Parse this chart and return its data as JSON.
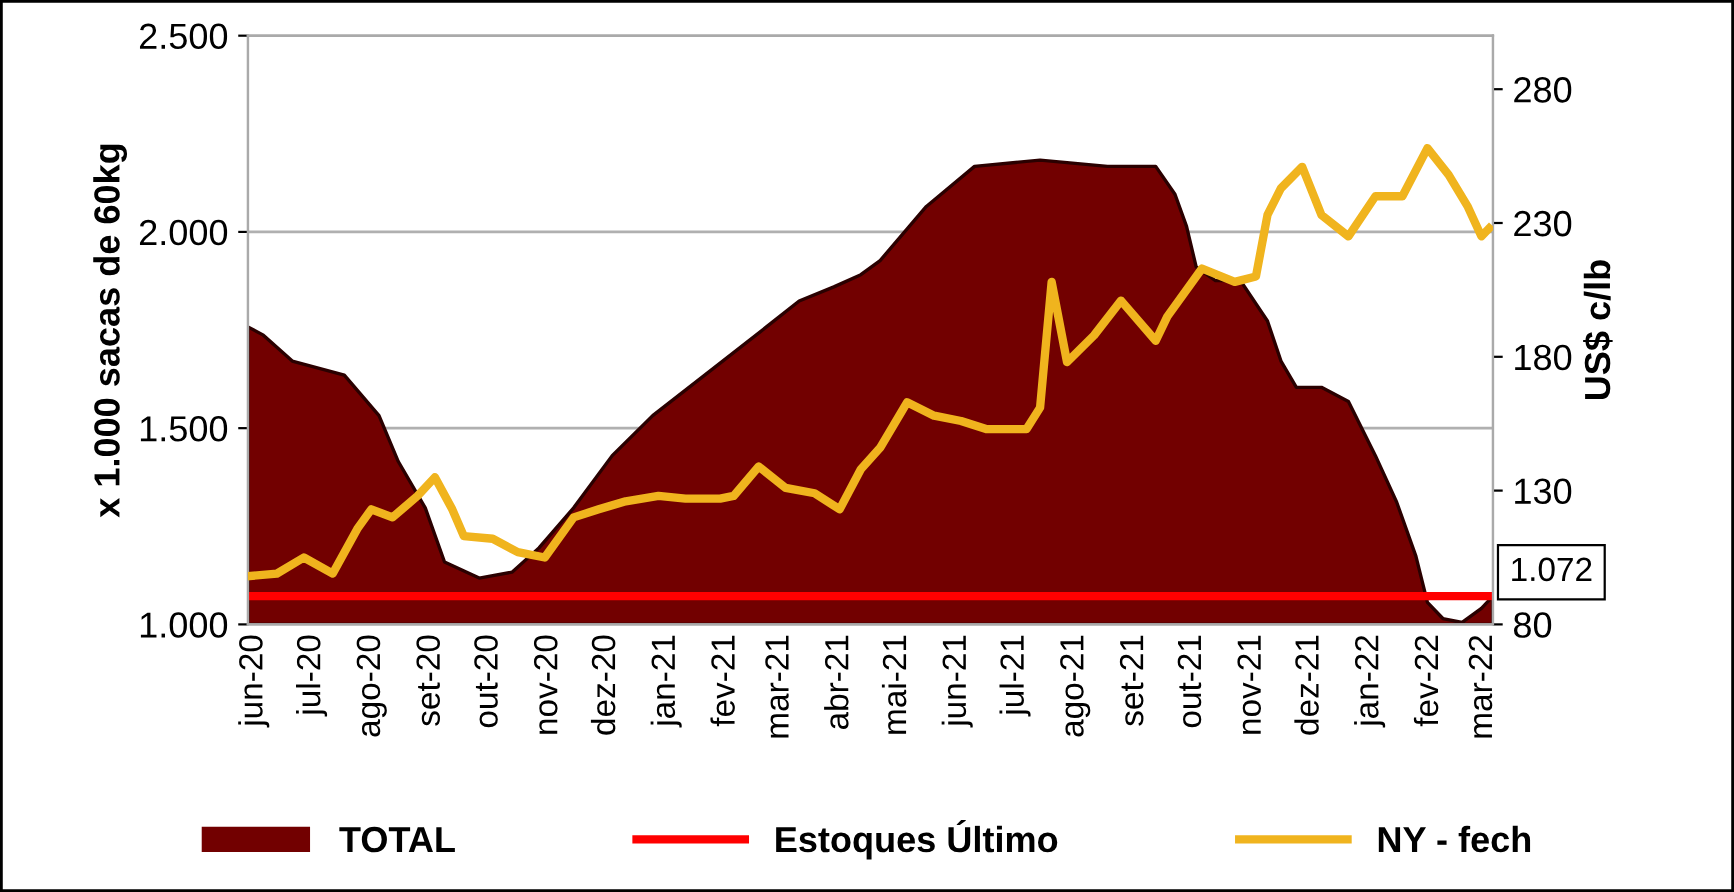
{
  "chart_data": {
    "type": "area",
    "ylabel": "x 1.000 sacas de 60kg",
    "y2label": "US$ c/lb",
    "xlim": [
      "2020-05-29",
      "2022-03-06"
    ],
    "xticks": [
      {
        "value": "2020-06-01",
        "label": "jun-20"
      },
      {
        "value": "2020-07-01",
        "label": "jul-20"
      },
      {
        "value": "2020-08-01",
        "label": "ago-20"
      },
      {
        "value": "2020-09-01",
        "label": "set-20"
      },
      {
        "value": "2020-10-01",
        "label": "out-20"
      },
      {
        "value": "2020-11-01",
        "label": "nov-20"
      },
      {
        "value": "2020-12-01",
        "label": "dez-20"
      },
      {
        "value": "2021-01-01",
        "label": "jan-21"
      },
      {
        "value": "2021-02-01",
        "label": "fev-21"
      },
      {
        "value": "2021-03-01",
        "label": "mar-21"
      },
      {
        "value": "2021-04-01",
        "label": "abr-21"
      },
      {
        "value": "2021-05-01",
        "label": "mai-21"
      },
      {
        "value": "2021-06-01",
        "label": "jun-21"
      },
      {
        "value": "2021-07-01",
        "label": "jul-21"
      },
      {
        "value": "2021-08-01",
        "label": "ago-21"
      },
      {
        "value": "2021-09-01",
        "label": "set-21"
      },
      {
        "value": "2021-10-01",
        "label": "out-21"
      },
      {
        "value": "2021-11-01",
        "label": "nov-21"
      },
      {
        "value": "2021-12-01",
        "label": "dez-21"
      },
      {
        "value": "2022-01-01",
        "label": "jan-22"
      },
      {
        "value": "2022-02-01",
        "label": "fev-22"
      },
      {
        "value": "2022-03-01",
        "label": "mar-22"
      }
    ],
    "ylim": [
      1000,
      2500
    ],
    "yticks": [
      {
        "value": 1000,
        "label": "1.000"
      },
      {
        "value": 1500,
        "label": "1.500"
      },
      {
        "value": 2000,
        "label": "2.000"
      },
      {
        "value": 2500,
        "label": "2.500"
      }
    ],
    "y2lim": [
      80,
      300
    ],
    "y2ticks": [
      80,
      130,
      180,
      230,
      280
    ],
    "grid": "y",
    "legend": "bottom",
    "marker": "none",
    "line_style": "solid",
    "series": [
      {
        "name": "TOTAL",
        "color": "#720000",
        "x": [
          "2020-05-29",
          "2020-06-06",
          "2020-06-21",
          "2020-07-18",
          "2020-08-05",
          "2020-08-15",
          "2020-08-29",
          "2020-09-08",
          "2020-09-26",
          "2020-10-13",
          "2020-10-27",
          "2020-11-14",
          "2020-12-04",
          "2020-12-25",
          "2021-01-21",
          "2021-02-22",
          "2021-03-11",
          "2021-03-29",
          "2021-04-12",
          "2021-04-22",
          "2021-05-16",
          "2021-06-10",
          "2021-07-14",
          "2021-08-18",
          "2021-09-12",
          "2021-09-22",
          "2021-09-28",
          "2021-10-03",
          "2021-10-13",
          "2021-10-26",
          "2021-11-09",
          "2021-11-16",
          "2021-11-24",
          "2021-12-07",
          "2021-12-21",
          "2022-01-04",
          "2022-01-15",
          "2022-01-25",
          "2022-01-31",
          "2022-02-08",
          "2022-02-18",
          "2022-02-28",
          "2022-03-06"
        ],
        "values": [
          1758,
          1737,
          1671,
          1635,
          1532,
          1415,
          1297,
          1159,
          1118,
          1133,
          1195,
          1297,
          1430,
          1532,
          1635,
          1758,
          1824,
          1860,
          1891,
          1927,
          2065,
          2167,
          2183,
          2167,
          2167,
          2096,
          2014,
          1911,
          1876,
          1876,
          1773,
          1671,
          1604,
          1604,
          1568,
          1430,
          1312,
          1174,
          1056,
          1015,
          1005,
          1041,
          1072
        ]
      },
      {
        "name": "Estoques Último",
        "type": "line",
        "color": "#ff0000",
        "x": [
          "2020-05-29",
          "2022-03-06"
        ],
        "values": [
          1072,
          1072
        ],
        "value_labels": [
          null,
          "1.072"
        ]
      },
      {
        "name": "NY - fech",
        "type": "line",
        "axis": "y2",
        "color": "#f0b41e",
        "x": [
          "2020-05-29",
          "2020-06-13",
          "2020-06-27",
          "2020-07-12",
          "2020-07-25",
          "2020-08-01",
          "2020-08-12",
          "2020-08-25",
          "2020-09-03",
          "2020-09-12",
          "2020-09-18",
          "2020-10-03",
          "2020-10-16",
          "2020-10-30",
          "2020-11-14",
          "2020-11-27",
          "2020-12-11",
          "2020-12-28",
          "2021-01-11",
          "2021-01-29",
          "2021-02-05",
          "2021-02-18",
          "2021-03-04",
          "2021-03-19",
          "2021-04-01",
          "2021-04-12",
          "2021-04-22",
          "2021-05-06",
          "2021-05-20",
          "2021-06-03",
          "2021-06-16",
          "2021-07-07",
          "2021-07-14",
          "2021-07-20",
          "2021-07-28",
          "2021-08-11",
          "2021-08-25",
          "2021-09-12",
          "2021-09-18",
          "2021-10-06",
          "2021-10-23",
          "2021-11-03",
          "2021-11-09",
          "2021-11-16",
          "2021-11-27",
          "2021-12-07",
          "2021-12-21",
          "2022-01-04",
          "2022-01-18",
          "2022-01-31",
          "2022-02-11",
          "2022-02-21",
          "2022-02-28",
          "2022-03-04"
        ],
        "values": [
          98,
          99,
          105,
          99,
          116,
          123,
          120,
          128,
          135,
          123,
          113,
          112,
          107,
          105,
          120,
          123,
          126,
          128,
          127,
          127,
          128,
          139,
          131,
          129,
          123,
          138,
          146,
          163,
          158,
          156,
          153,
          153,
          161,
          208,
          178,
          188,
          201,
          186,
          195,
          213,
          208,
          210,
          233,
          243,
          251,
          233,
          225,
          240,
          240,
          258,
          248,
          236,
          225,
          228
        ]
      }
    ]
  }
}
